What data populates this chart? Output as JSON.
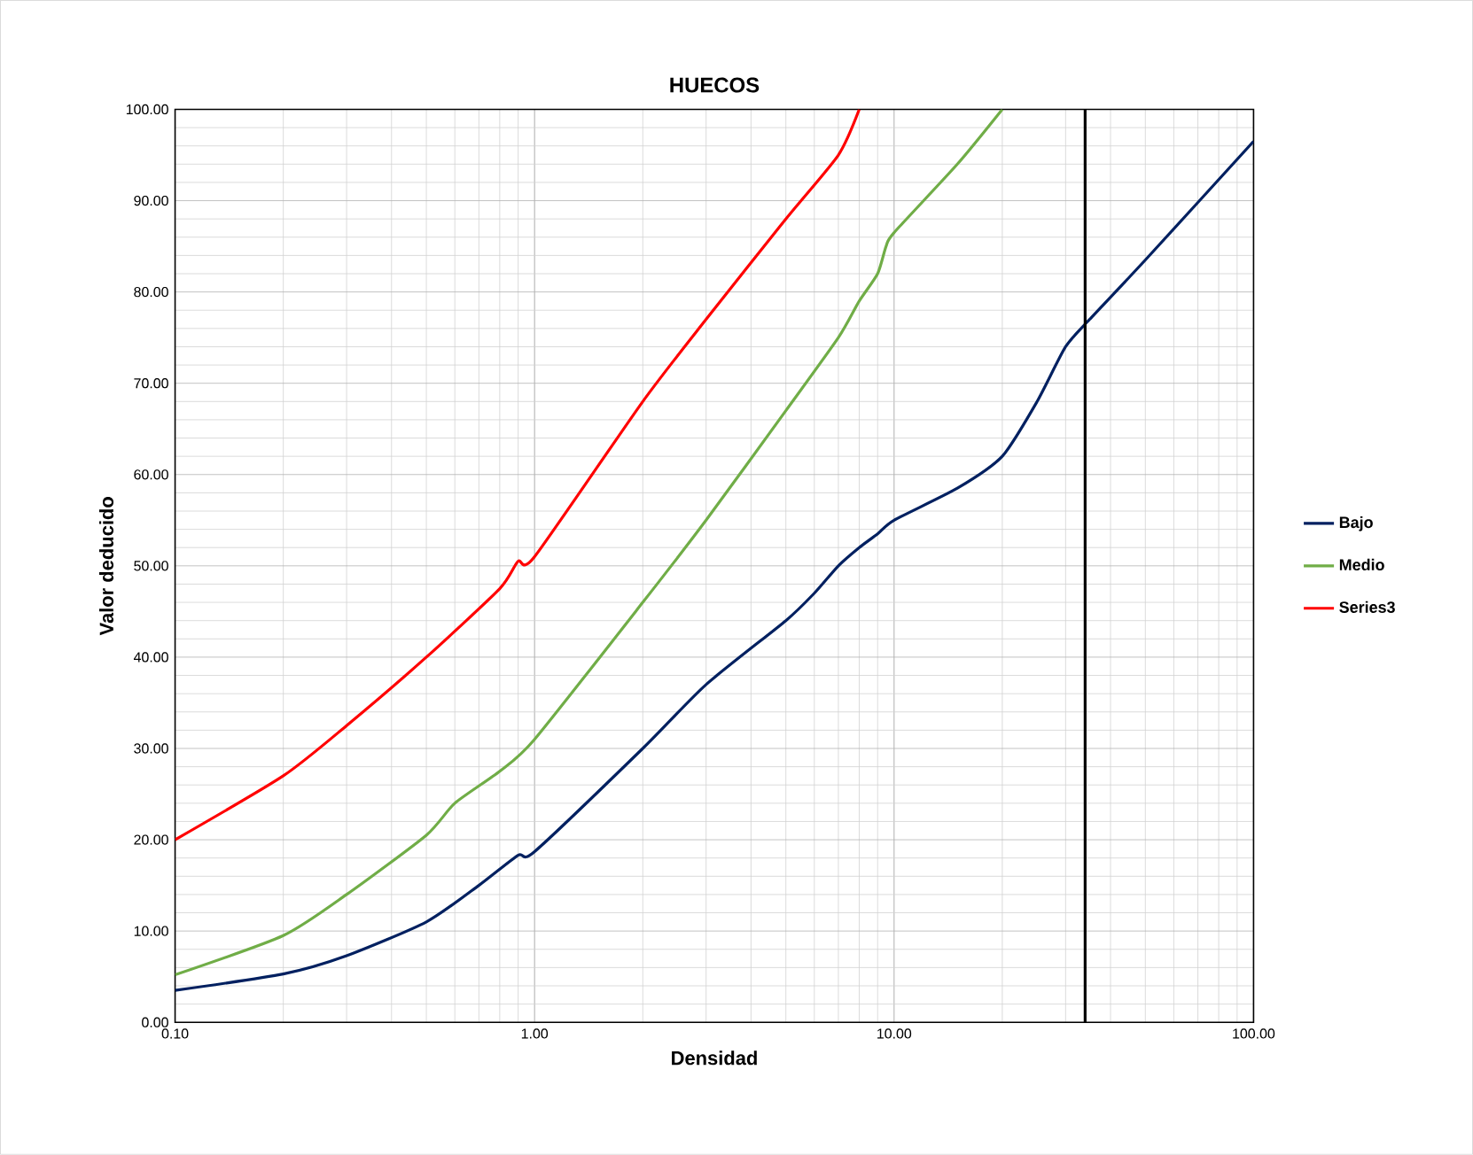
{
  "chart_data": {
    "type": "line",
    "title": "HUECOS",
    "xlabel": "Densidad",
    "ylabel": "Valor deducido",
    "log": "x",
    "grid": true,
    "legend": "right",
    "marker": "none",
    "line_style": "solid",
    "xlim": [
      0.1,
      100
    ],
    "ylim": [
      0,
      100
    ],
    "xticks": [
      {
        "value": 0.1,
        "label": "0.10"
      },
      {
        "value": 1,
        "label": "1.00"
      },
      {
        "value": 10,
        "label": "10.00"
      },
      {
        "value": 100,
        "label": "100.00"
      }
    ],
    "yticks": [
      {
        "value": 0,
        "label": "0.00"
      },
      {
        "value": 10,
        "label": "10.00"
      },
      {
        "value": 20,
        "label": "20.00"
      },
      {
        "value": 30,
        "label": "30.00"
      },
      {
        "value": 40,
        "label": "40.00"
      },
      {
        "value": 50,
        "label": "50.00"
      },
      {
        "value": 60,
        "label": "60.00"
      },
      {
        "value": 70,
        "label": "70.00"
      },
      {
        "value": 80,
        "label": "80.00"
      },
      {
        "value": 90,
        "label": "90.00"
      },
      {
        "value": 100,
        "label": "100.00"
      }
    ],
    "series": [
      {
        "name": "Bajo",
        "color": "#002060",
        "x": [
          0.1,
          0.2,
          0.3,
          0.5,
          0.7,
          0.9,
          1.0,
          2,
          3,
          5,
          6,
          7,
          8,
          9,
          10,
          15,
          20,
          25,
          30,
          35,
          50,
          100
        ],
        "values": [
          3.5,
          5.3,
          7.3,
          11,
          15,
          18.3,
          18.7,
          30,
          37,
          44,
          47,
          50,
          52,
          53.5,
          55,
          58.5,
          62,
          68,
          74,
          77,
          83.5,
          96.5
        ]
      },
      {
        "name": "Medio",
        "color": "#70ad47",
        "x": [
          0.1,
          0.2,
          0.3,
          0.5,
          0.6,
          0.8,
          1.0,
          2,
          3,
          5,
          7,
          8,
          9,
          9.5,
          10,
          15,
          20
        ],
        "values": [
          5.2,
          9.5,
          14,
          20.5,
          24,
          27.5,
          31,
          46,
          55,
          67,
          75,
          79,
          82,
          85,
          86.5,
          94,
          100
        ]
      },
      {
        "name": "Series3",
        "color": "#ff0000",
        "x": [
          0.1,
          0.2,
          0.3,
          0.5,
          0.8,
          0.9,
          1.0,
          2,
          3,
          5,
          7,
          8
        ],
        "values": [
          20,
          27,
          32.5,
          40,
          47.5,
          50.5,
          51,
          68,
          77,
          88,
          95,
          100
        ]
      }
    ],
    "ref_lines": [
      {
        "axis": "x",
        "value": 34,
        "label": null,
        "color": "#000000"
      }
    ]
  }
}
